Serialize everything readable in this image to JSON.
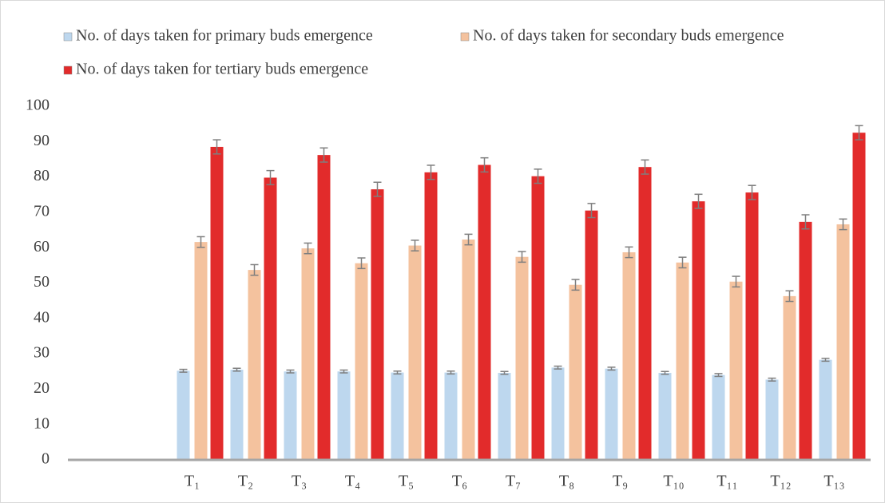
{
  "chart_data": {
    "type": "bar",
    "categories": [
      null,
      null,
      "T₁",
      "T₂",
      "T₃",
      "T₄",
      "T₅",
      "T₆",
      "T₇",
      "T₈",
      "T₉",
      "T₁₀",
      "T₁₁",
      "T₁₂",
      "T₁₃"
    ],
    "series": [
      {
        "name": "No. of days taken for primary buds emergence",
        "color": "#bdd7ee",
        "values": [
          null,
          null,
          25.2,
          25.5,
          25.0,
          25.0,
          24.7,
          24.7,
          24.6,
          26.1,
          25.8,
          24.6,
          24.0,
          22.7,
          28.3
        ],
        "errors": [
          null,
          null,
          0.4,
          0.4,
          0.4,
          0.4,
          0.4,
          0.4,
          0.4,
          0.4,
          0.4,
          0.4,
          0.4,
          0.4,
          0.4
        ]
      },
      {
        "name": "No. of days taken for secondary buds emergence",
        "color": "#f4c29e",
        "values": [
          null,
          null,
          61.6,
          53.7,
          59.8,
          55.6,
          60.6,
          62.3,
          57.4,
          49.5,
          58.7,
          55.8,
          50.4,
          46.3,
          66.6
        ],
        "errors": [
          null,
          null,
          1.5,
          1.5,
          1.5,
          1.5,
          1.5,
          1.5,
          1.5,
          1.5,
          1.5,
          1.5,
          1.5,
          1.5,
          1.5
        ]
      },
      {
        "name": "No. of days taken for tertiary buds emergence",
        "color": "#e22b2b",
        "values": [
          null,
          null,
          88.5,
          79.8,
          86.2,
          76.5,
          81.3,
          83.4,
          80.2,
          70.5,
          82.8,
          73.1,
          75.6,
          67.3,
          92.5
        ],
        "errors": [
          null,
          null,
          2,
          2,
          2,
          2,
          2,
          2,
          2,
          2,
          2,
          2,
          2,
          2,
          2
        ]
      }
    ],
    "ylim": [
      0,
      100
    ],
    "yticks": [
      0,
      10,
      20,
      30,
      40,
      50,
      60,
      70,
      80,
      90,
      100
    ],
    "legend": "top-left",
    "grid": false
  }
}
